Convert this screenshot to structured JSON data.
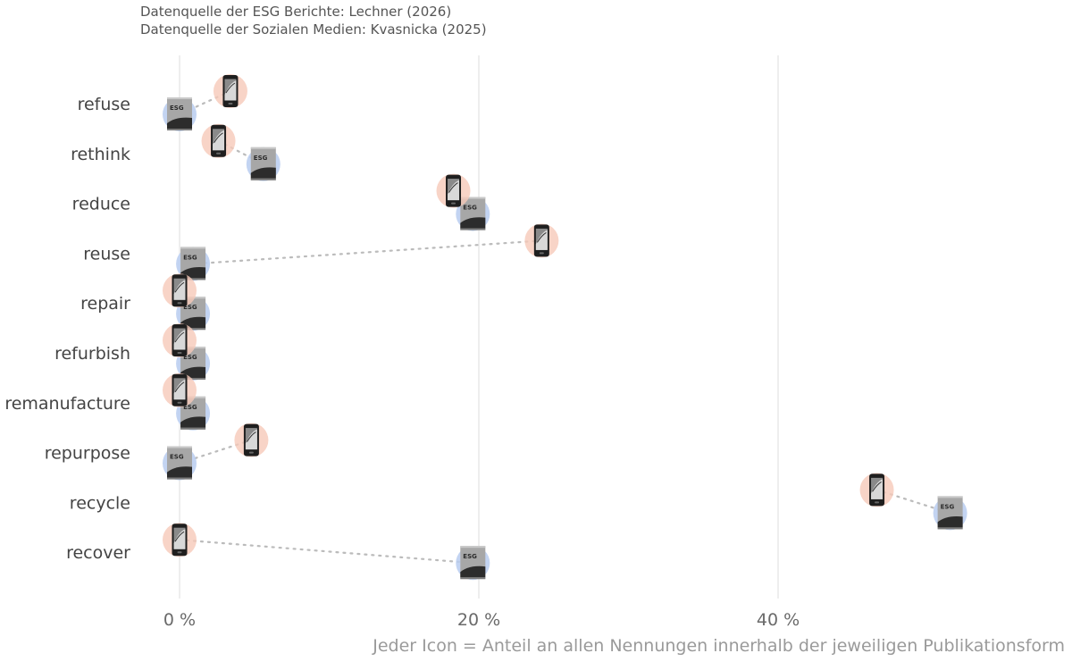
{
  "sources": {
    "esg": "Datenquelle der ESG Berichte: Lechner (2026)",
    "social": "Datenquelle der Sozialen Medien: Kvasnicka (2025)"
  },
  "caption": "Jeder Icon = Anteil an allen Nennungen innerhalb der jeweiligen Publikationsform",
  "colors": {
    "social_media": "#f6c9b9",
    "esg_report": "#b9cdf0",
    "gridline": "#e3e3e3",
    "connector": "#bbbbbb"
  },
  "icons": {
    "social_media": "smartphone-icon",
    "esg_report": "esg-report-icon"
  },
  "icon_labels": {
    "esg_report": "ESG"
  },
  "chart_data": {
    "type": "dumbbell",
    "x_unit": "%",
    "xlim": [
      -9,
      59
    ],
    "x_ticks": [
      0,
      20,
      40
    ],
    "x_tick_labels": [
      "0 %",
      "20 %",
      "40 %"
    ],
    "grid": "vertical major gridlines",
    "categories": [
      "refuse",
      "rethink",
      "reduce",
      "reuse",
      "repair",
      "refurbish",
      "remanufacture",
      "repurpose",
      "recycle",
      "recover"
    ],
    "series": [
      {
        "key": "social_media",
        "values": [
          3.4,
          2.6,
          18.3,
          24.2,
          0,
          0,
          0,
          4.8,
          46.6,
          0
        ]
      },
      {
        "key": "esg_report",
        "values": [
          0,
          5.6,
          19.6,
          0.9,
          0.9,
          0.9,
          0.9,
          0,
          51.5,
          19.6
        ]
      }
    ]
  }
}
